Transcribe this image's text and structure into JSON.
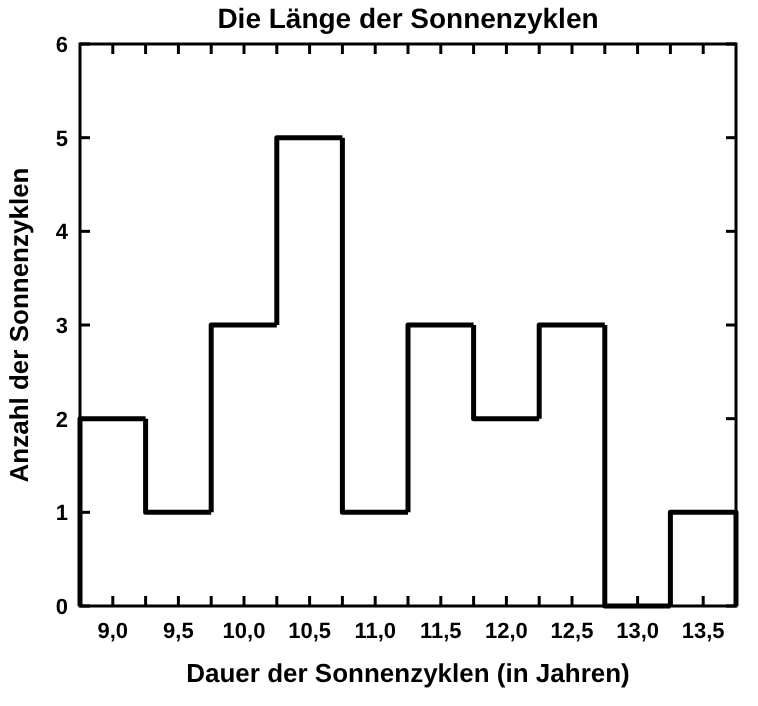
{
  "chart_data": {
    "type": "histogram",
    "title": "Die Länge der Sonnenzyklen",
    "xlabel": "Dauer der Sonnenzyklen (in Jahren)",
    "ylabel": "Anzahl der Sonnenzyklen",
    "bins": [
      8.75,
      9.25,
      9.75,
      10.25,
      10.75,
      11.25,
      11.75,
      12.25,
      12.75,
      13.25,
      13.75
    ],
    "values": [
      2,
      1,
      3,
      5,
      1,
      3,
      2,
      3,
      0,
      1
    ],
    "color": "#000000",
    "xlim": [
      8.75,
      13.75
    ],
    "xticks": [
      {
        "value": 9,
        "label": "9,0"
      },
      {
        "value": 9.25,
        "label": null
      },
      {
        "value": 9.5,
        "label": "9,5"
      },
      {
        "value": 9.75,
        "label": null
      },
      {
        "value": 10,
        "label": "10,0"
      },
      {
        "value": 10.25,
        "label": null
      },
      {
        "value": 10.5,
        "label": "10,5"
      },
      {
        "value": 10.75,
        "label": null
      },
      {
        "value": 11,
        "label": "11,0"
      },
      {
        "value": 11.25,
        "label": null
      },
      {
        "value": 11.5,
        "label": "11,5"
      },
      {
        "value": 11.75,
        "label": null
      },
      {
        "value": 12,
        "label": "12,0"
      },
      {
        "value": 12.25,
        "label": null
      },
      {
        "value": 12.5,
        "label": "12,5"
      },
      {
        "value": 12.75,
        "label": null
      },
      {
        "value": 13,
        "label": "13,0"
      },
      {
        "value": 13.25,
        "label": null
      },
      {
        "value": 13.5,
        "label": "13,5"
      }
    ],
    "ylim": [
      0,
      6
    ],
    "yticks": [
      0,
      1,
      2,
      3,
      4,
      5,
      6
    ]
  }
}
